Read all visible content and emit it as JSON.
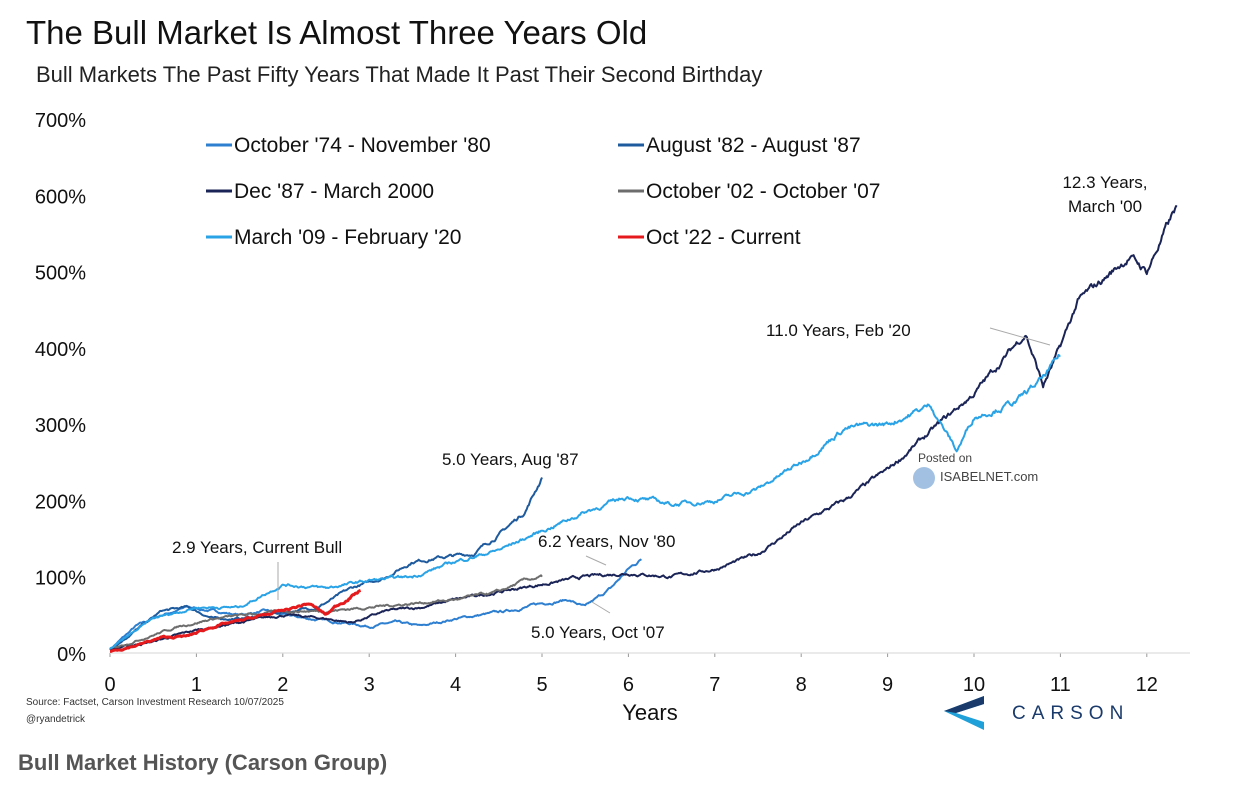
{
  "title": "The Bull Market Is Almost Three Years Old",
  "subtitle": "Bull Markets The Past Fifty Years That Made It Past Their Second Birthday",
  "caption": "Bull Market History (Carson Group)",
  "source": "Source: Factset, Carson Investment Research 10/07/2025",
  "handle": "@ryandetrick",
  "watermark": {
    "line1": "Posted on",
    "line2": "ISABELNET.com"
  },
  "logo_text": "CARSON",
  "colors": {
    "brand": "#1a3a6b",
    "accent": "#1fa0d8"
  },
  "chart_data": {
    "type": "line",
    "xlabel": "Years",
    "ylabel": "",
    "xlim": [
      0,
      12.5
    ],
    "ylim": [
      0,
      700
    ],
    "x_ticks": [
      0,
      1,
      2,
      3,
      4,
      5,
      6,
      7,
      8,
      9,
      10,
      11,
      12
    ],
    "x_tick_labels": [
      "0",
      "1",
      "2",
      "3",
      "4",
      "5",
      "6",
      "7",
      "8",
      "9",
      "10",
      "11",
      "12"
    ],
    "y_ticks": [
      0,
      100,
      200,
      300,
      400,
      500,
      600,
      700
    ],
    "y_tick_labels": [
      "0%",
      "100%",
      "200%",
      "300%",
      "400%",
      "500%",
      "600%",
      "700%"
    ],
    "legend_position": "top-left",
    "series": [
      {
        "name": "October '74 - November '80",
        "color": "#2e7fd0",
        "points": [
          [
            0,
            0.05
          ],
          [
            0.3,
            0.35
          ],
          [
            0.6,
            0.5
          ],
          [
            0.9,
            0.6
          ],
          [
            1.2,
            0.55
          ],
          [
            1.5,
            0.5
          ],
          [
            1.8,
            0.55
          ],
          [
            2.0,
            0.5
          ],
          [
            2.3,
            0.45
          ],
          [
            2.7,
            0.4
          ],
          [
            3.0,
            0.35
          ],
          [
            3.3,
            0.4
          ],
          [
            3.6,
            0.35
          ],
          [
            4.0,
            0.45
          ],
          [
            4.3,
            0.5
          ],
          [
            4.6,
            0.55
          ],
          [
            5.0,
            0.65
          ],
          [
            5.3,
            0.7
          ],
          [
            5.5,
            0.6
          ],
          [
            5.8,
            0.85
          ],
          [
            6.0,
            1.1
          ],
          [
            6.15,
            1.23
          ]
        ]
      },
      {
        "name": "August '82 - August '87",
        "color": "#1e5a9e",
        "points": [
          [
            0,
            0.05
          ],
          [
            0.3,
            0.3
          ],
          [
            0.6,
            0.55
          ],
          [
            0.9,
            0.6
          ],
          [
            1.2,
            0.45
          ],
          [
            1.5,
            0.45
          ],
          [
            1.8,
            0.5
          ],
          [
            2.1,
            0.55
          ],
          [
            2.4,
            0.6
          ],
          [
            2.8,
            0.85
          ],
          [
            3.2,
            1.0
          ],
          [
            3.5,
            1.2
          ],
          [
            3.8,
            1.25
          ],
          [
            4.2,
            1.3
          ],
          [
            4.5,
            1.55
          ],
          [
            4.8,
            1.85
          ],
          [
            5.0,
            2.3
          ]
        ]
      },
      {
        "name": "Dec '87 - March 2000",
        "color": "#1b2456",
        "points": [
          [
            0,
            0.05
          ],
          [
            0.5,
            0.15
          ],
          [
            1.0,
            0.3
          ],
          [
            1.5,
            0.4
          ],
          [
            2.0,
            0.5
          ],
          [
            2.5,
            0.45
          ],
          [
            2.8,
            0.4
          ],
          [
            3.2,
            0.55
          ],
          [
            3.6,
            0.6
          ],
          [
            4.0,
            0.7
          ],
          [
            4.5,
            0.8
          ],
          [
            5.0,
            0.9
          ],
          [
            5.5,
            1.0
          ],
          [
            6.0,
            1.05
          ],
          [
            6.5,
            1.0
          ],
          [
            7.0,
            1.1
          ],
          [
            7.5,
            1.3
          ],
          [
            8.0,
            1.7
          ],
          [
            8.5,
            2.0
          ],
          [
            9.0,
            2.4
          ],
          [
            9.3,
            2.7
          ],
          [
            9.7,
            3.1
          ],
          [
            10.0,
            3.4
          ],
          [
            10.3,
            3.8
          ],
          [
            10.6,
            4.2
          ],
          [
            10.8,
            3.5
          ],
          [
            11.0,
            4.0
          ],
          [
            11.2,
            4.6
          ],
          [
            11.5,
            4.9
          ],
          [
            11.8,
            5.2
          ],
          [
            12.0,
            5.0
          ],
          [
            12.2,
            5.5
          ],
          [
            12.35,
            5.85
          ]
        ]
      },
      {
        "name": "October '02 - October '07",
        "color": "#6d6d6d",
        "points": [
          [
            0,
            0.05
          ],
          [
            0.4,
            0.2
          ],
          [
            0.8,
            0.35
          ],
          [
            1.2,
            0.45
          ],
          [
            1.6,
            0.5
          ],
          [
            2.0,
            0.55
          ],
          [
            2.5,
            0.55
          ],
          [
            3.0,
            0.6
          ],
          [
            3.5,
            0.65
          ],
          [
            4.0,
            0.7
          ],
          [
            4.5,
            0.8
          ],
          [
            4.8,
            0.95
          ],
          [
            5.0,
            1.0
          ]
        ]
      },
      {
        "name": "March '09 - February '20",
        "color": "#2aa3e6",
        "points": [
          [
            0,
            0.05
          ],
          [
            0.5,
            0.45
          ],
          [
            1.0,
            0.6
          ],
          [
            1.5,
            0.6
          ],
          [
            2.0,
            0.9
          ],
          [
            2.5,
            0.85
          ],
          [
            3.0,
            0.95
          ],
          [
            3.5,
            1.0
          ],
          [
            4.0,
            1.2
          ],
          [
            4.5,
            1.35
          ],
          [
            5.0,
            1.6
          ],
          [
            5.5,
            1.85
          ],
          [
            6.0,
            2.05
          ],
          [
            6.5,
            1.95
          ],
          [
            7.0,
            2.0
          ],
          [
            7.5,
            2.15
          ],
          [
            8.0,
            2.5
          ],
          [
            8.5,
            2.95
          ],
          [
            9.0,
            3.0
          ],
          [
            9.5,
            3.25
          ],
          [
            9.8,
            2.65
          ],
          [
            10.0,
            3.1
          ],
          [
            10.5,
            3.3
          ],
          [
            10.8,
            3.6
          ],
          [
            11.0,
            3.9
          ]
        ]
      },
      {
        "name": "Oct '22 - Current",
        "color": "#e41a1c",
        "points": [
          [
            0,
            0.02
          ],
          [
            0.3,
            0.1
          ],
          [
            0.6,
            0.2
          ],
          [
            0.9,
            0.22
          ],
          [
            1.2,
            0.35
          ],
          [
            1.5,
            0.42
          ],
          [
            1.8,
            0.5
          ],
          [
            2.0,
            0.55
          ],
          [
            2.3,
            0.65
          ],
          [
            2.5,
            0.5
          ],
          [
            2.6,
            0.6
          ],
          [
            2.8,
            0.75
          ],
          [
            2.9,
            0.82
          ]
        ]
      }
    ],
    "annotations": [
      {
        "text": "12.3 Years,",
        "text2": "March '00"
      },
      {
        "text": "11.0 Years, Feb '20"
      },
      {
        "text": "5.0 Years, Aug '87"
      },
      {
        "text": "6.2 Years, Nov '80"
      },
      {
        "text": "5.0 Years, Oct '07"
      },
      {
        "text": "2.9 Years, Current Bull"
      }
    ]
  }
}
